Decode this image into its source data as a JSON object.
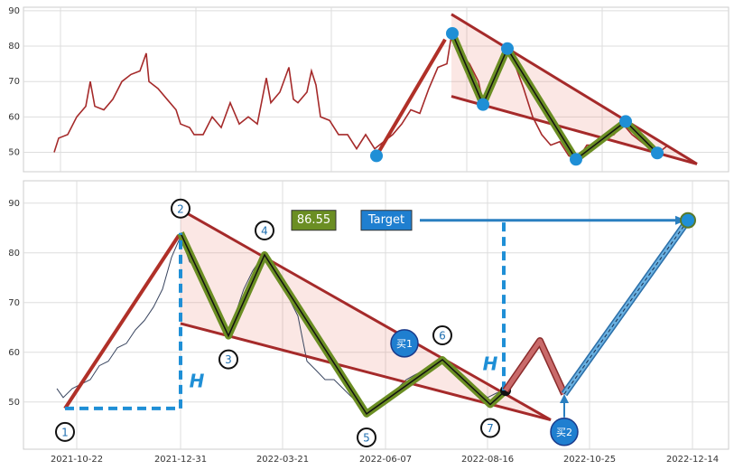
{
  "chart_data": [
    {
      "type": "line",
      "xlim": [
        0,
        781
      ],
      "ylim": [
        44.5,
        91
      ],
      "yticks": [
        50,
        60,
        70,
        80,
        90
      ],
      "xgrid": [
        41,
        191,
        341,
        491,
        641
      ],
      "grid": true,
      "series": [
        {
          "color": "#a52a2a",
          "x": [
            34,
            39,
            49,
            59,
            69,
            74,
            79,
            89,
            99,
            109,
            119,
            129,
            136,
            139,
            149,
            159,
            169,
            174,
            184,
            189,
            199,
            209,
            219,
            229,
            239,
            249,
            259,
            269,
            274,
            284,
            294,
            299,
            304,
            314,
            319,
            324,
            329,
            339,
            349,
            359,
            369,
            379,
            389,
            399,
            409,
            419,
            429,
            439,
            449,
            459,
            469,
            474,
            484,
            494,
            504,
            509,
            519,
            529,
            536,
            544,
            554,
            564,
            574,
            584,
            594,
            604,
            614,
            624,
            634,
            644,
            654,
            664,
            674,
            684,
            694,
            704,
            714
          ],
          "values": [
            50,
            54,
            55,
            60,
            63,
            70,
            63,
            62,
            65,
            70,
            72,
            73,
            78,
            70,
            68,
            65,
            62,
            58,
            57,
            55,
            55,
            60,
            57,
            64,
            58,
            60,
            58,
            71,
            64,
            67,
            74,
            65,
            64,
            67,
            73,
            69,
            60,
            59,
            55,
            55,
            51,
            55,
            51,
            53,
            55,
            58,
            62,
            61,
            68,
            74,
            75,
            83,
            78,
            75,
            70,
            64,
            70,
            75,
            79,
            75,
            68,
            60,
            55,
            52,
            53,
            49,
            48,
            52,
            52,
            54,
            55,
            58,
            55,
            53,
            51,
            50,
            52
          ]
        }
      ],
      "pivots": {
        "x": [
          391,
          475,
          509,
          536,
          612,
          667,
          702
        ],
        "values": [
          49.0,
          83.6,
          63.5,
          79.3,
          48.0,
          58.7,
          49.8
        ]
      },
      "upper": {
        "x": [
          474,
          746
        ],
        "values": [
          89.0,
          46.7
        ]
      },
      "lower": {
        "x": [
          474,
          746
        ],
        "values": [
          65.8,
          46.7
        ]
      },
      "lead": {
        "x": [
          391,
          467
        ],
        "values": [
          49.0,
          81.9
        ]
      }
    },
    {
      "type": "line",
      "xlim": [
        0,
        781
      ],
      "ylim": [
        40.5,
        94.5
      ],
      "yticks": [
        50,
        60,
        70,
        80,
        90
      ],
      "grid": true,
      "xticks": [
        {
          "value": 59,
          "label": "2021-10-22"
        },
        {
          "value": 174,
          "label": "2021-12-31"
        },
        {
          "value": 287,
          "label": "2022-03-21"
        },
        {
          "value": 401,
          "label": "2022-06-07"
        },
        {
          "value": 514,
          "label": "2022-08-16"
        },
        {
          "value": 627,
          "label": "2022-10-25"
        },
        {
          "value": 741,
          "label": "2022-12-14"
        }
      ],
      "series": [
        {
          "color": "#3a4660",
          "x": [
            37,
            44,
            54,
            64,
            74,
            84,
            94,
            104,
            114,
            124,
            134,
            144,
            154,
            164,
            174,
            184,
            194,
            204,
            214,
            224,
            234,
            244,
            254,
            264,
            274,
            284,
            294,
            304,
            314,
            324,
            334,
            344,
            354,
            364,
            374,
            384,
            394,
            404,
            414,
            424,
            434,
            444,
            454,
            464,
            474,
            484,
            494,
            504,
            514,
            524,
            534
          ],
          "values": [
            52.7,
            50.9,
            52.7,
            53.6,
            54.5,
            57.3,
            58.2,
            60.9,
            61.8,
            64.5,
            66.4,
            69.1,
            72.7,
            79.1,
            83.3,
            78.2,
            76.4,
            72.7,
            68.2,
            63.6,
            67.3,
            72.7,
            76.4,
            79.1,
            77.3,
            74.5,
            70.9,
            67.3,
            58.2,
            56.4,
            54.5,
            54.5,
            52.7,
            50.9,
            49.1,
            48.2,
            49.1,
            50,
            52.7,
            54.5,
            55.5,
            56.4,
            57.3,
            58.5,
            56.4,
            54.5,
            53.6,
            52.4,
            50.9,
            51.8,
            52.4
          ]
        }
      ],
      "pivots": {
        "x": [
          46,
          174,
          227,
          267,
          380,
          464,
          517,
          534
        ],
        "values": [
          48.7,
          84.0,
          63.3,
          79.6,
          47.6,
          58.5,
          49.5,
          52.3
        ],
        "labels": [
          "1",
          "2",
          "3",
          "4",
          "5",
          "6",
          "7"
        ]
      },
      "upper": {
        "x": [
          174,
          584
        ],
        "values": [
          88.7,
          46.4
        ]
      },
      "lower": {
        "x": [
          174,
          584
        ],
        "values": [
          65.8,
          46.4
        ]
      },
      "lead": {
        "x": [
          46,
          172
        ],
        "values": [
          48.7,
          83.5
        ]
      },
      "measures": [
        {
          "label": "H",
          "x": [
            46,
            174,
            174
          ],
          "values": [
            48.7,
            48.7,
            84.0
          ]
        },
        {
          "label": "H",
          "x": [
            532,
            532
          ],
          "values": [
            52.3,
            86.55
          ]
        }
      ],
      "target": {
        "value": 86.55,
        "text": "Target",
        "x": 736,
        "arrow_x": [
          439,
          724
        ]
      },
      "projection": {
        "x": [
          534,
          572,
          599
        ],
        "values": [
          52.3,
          62.3,
          51.6
        ]
      },
      "rally": {
        "x": [
          599,
          736
        ],
        "values": [
          51.6,
          86.55
        ]
      },
      "signals": [
        {
          "label": "买1",
          "x": 422,
          "value": 61.8
        },
        {
          "label": "买2",
          "x": 599,
          "value": 44.0
        }
      ]
    }
  ]
}
